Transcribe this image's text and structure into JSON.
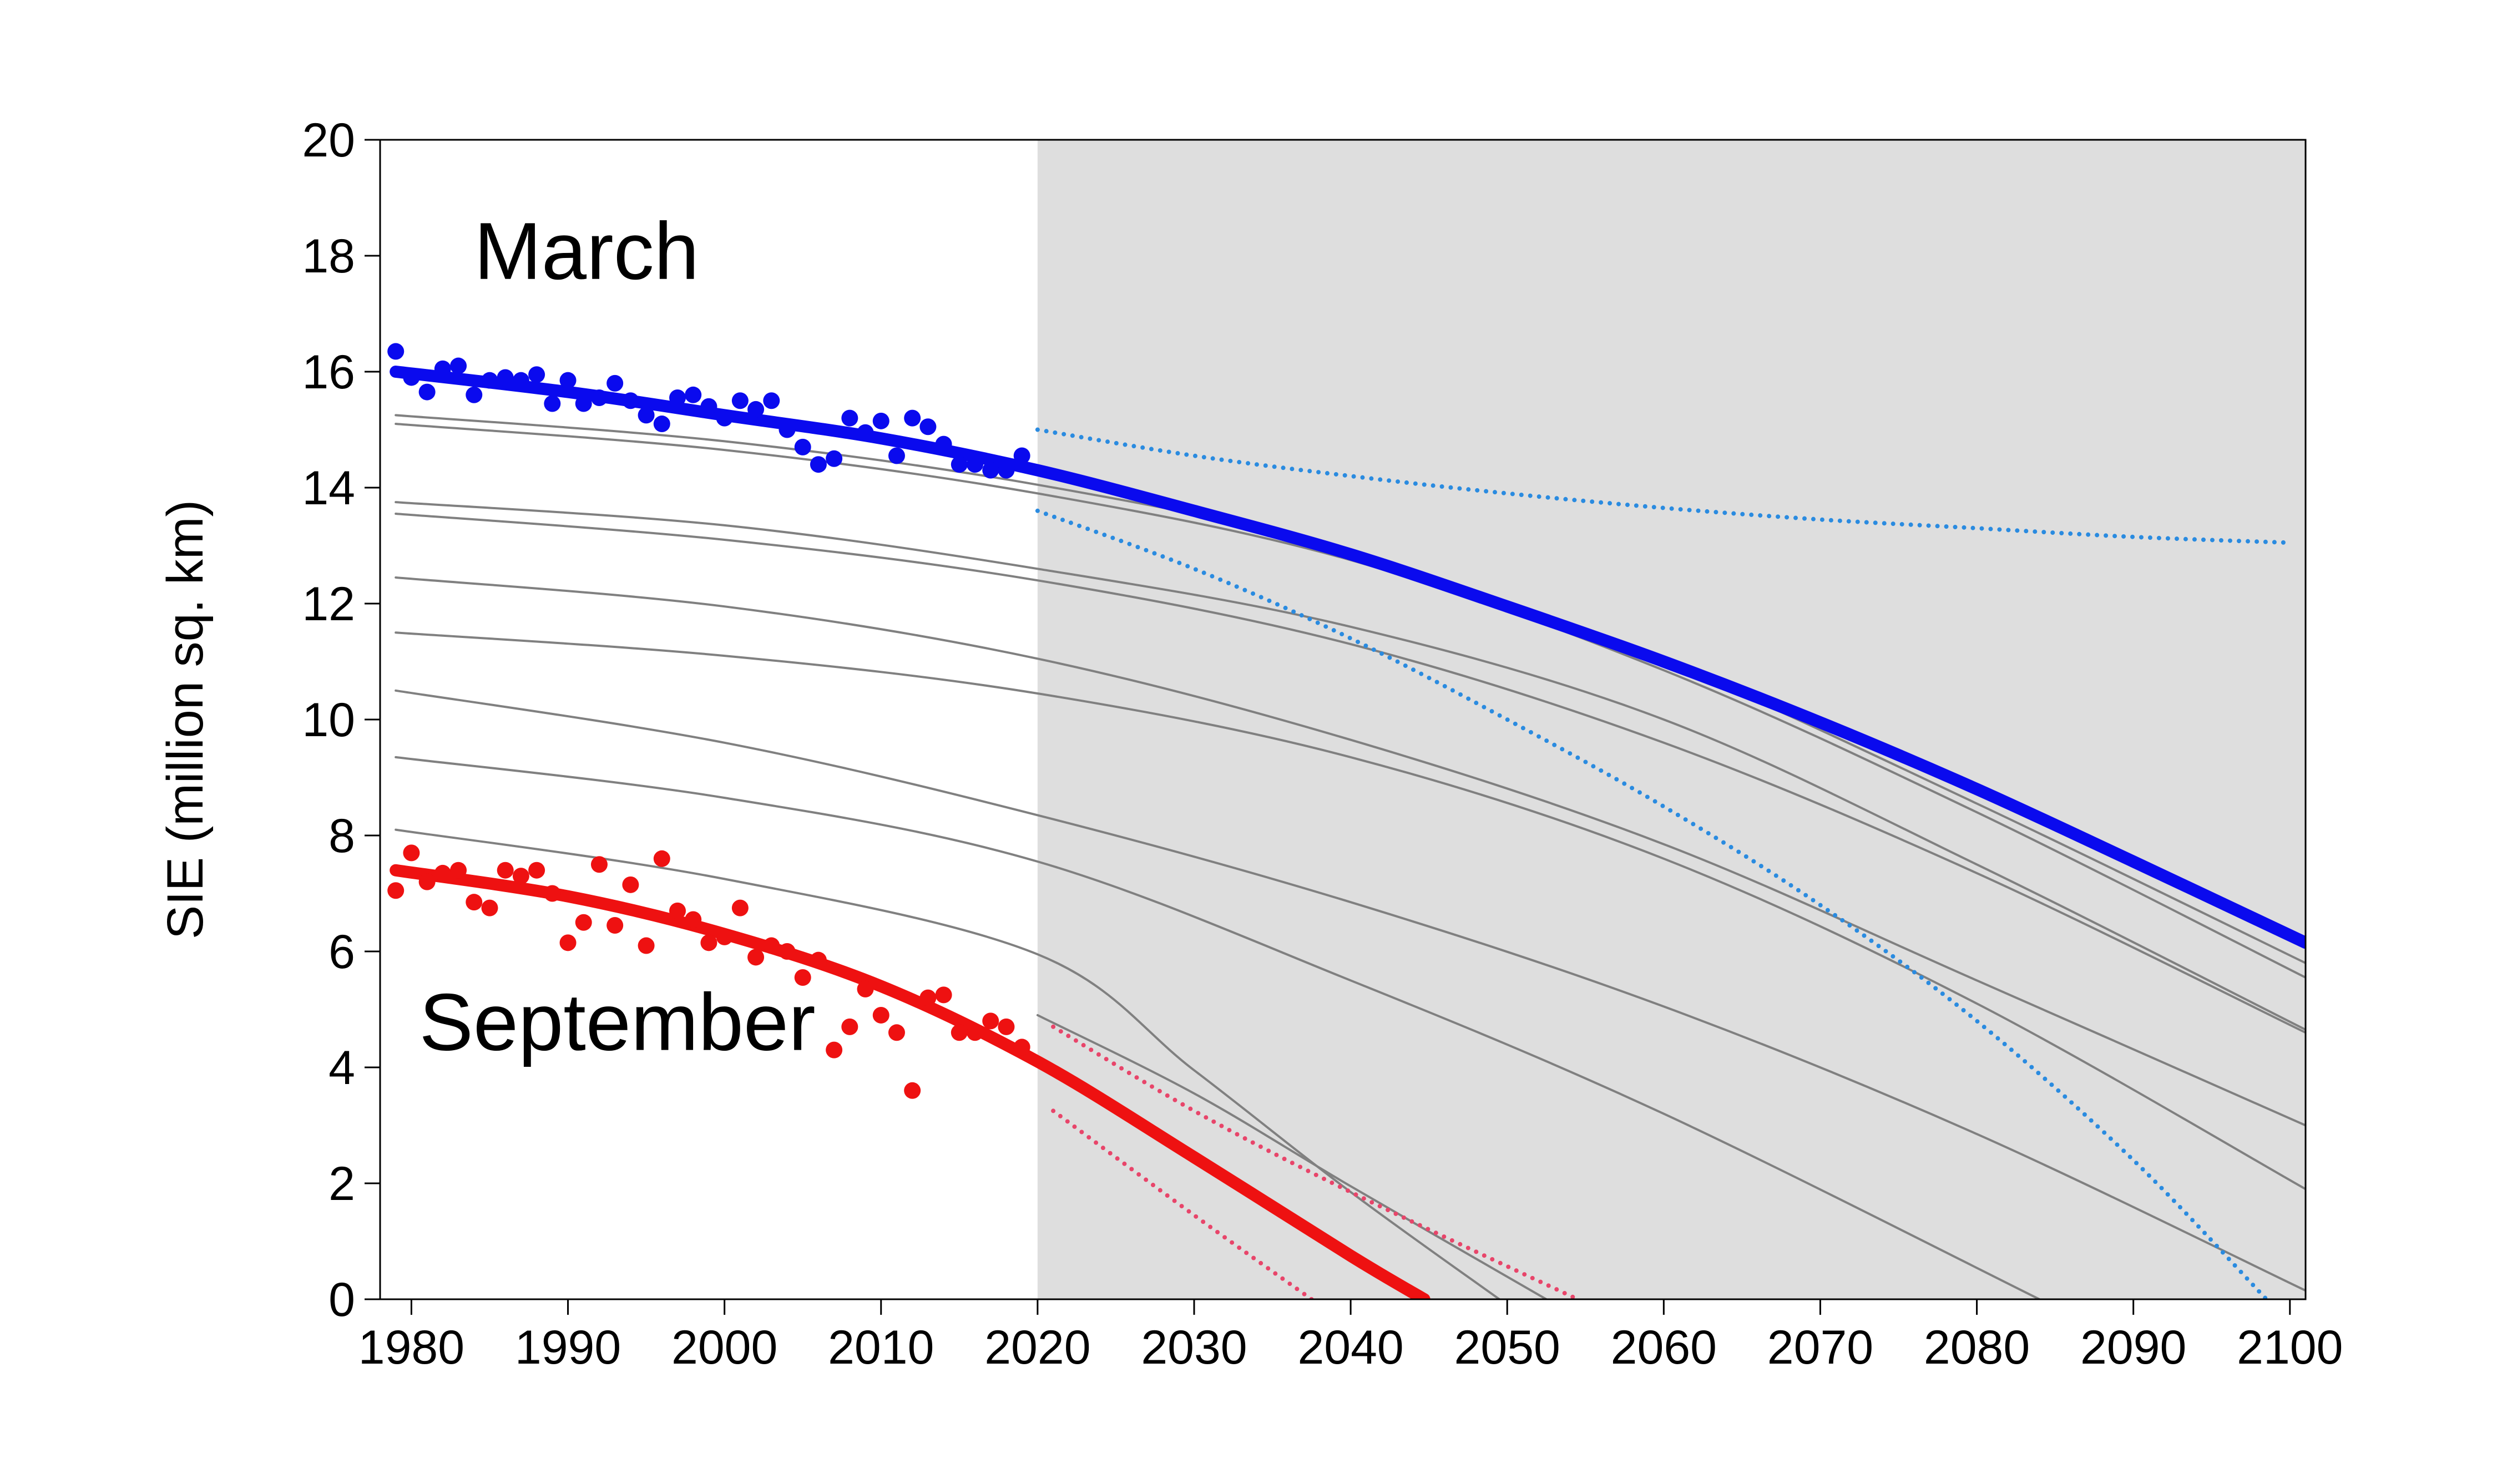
{
  "chart_data": {
    "type": "scatter",
    "title": "",
    "xlabel": "",
    "ylabel": "SIE (million sq. km)",
    "xlim": [
      1978,
      2101
    ],
    "ylim": [
      0,
      20
    ],
    "xticks": [
      1980,
      1990,
      2000,
      2010,
      2020,
      2030,
      2040,
      2050,
      2060,
      2070,
      2080,
      2090,
      2100
    ],
    "yticks": [
      0,
      2,
      4,
      6,
      8,
      10,
      12,
      14,
      16,
      18,
      20
    ],
    "grid": false,
    "shaded_region": {
      "x_start": 2020,
      "x_end": 2101,
      "color": "#dedede"
    },
    "annotations": [
      {
        "text": "March",
        "x": 1984,
        "y": 17.6
      },
      {
        "text": "September",
        "x": 1980.5,
        "y": 4.3
      }
    ],
    "colors": {
      "march": "#0a0aee",
      "september": "#ee1111",
      "march_dotted": "#2a8be0",
      "september_dotted": "#e8456a",
      "gray_lines": "#808080",
      "background_shade": "#dedede"
    },
    "series": [
      {
        "type": "scatter",
        "color": "#0a0aee",
        "x": [
          1979,
          1980,
          1981,
          1982,
          1983,
          1984,
          1985,
          1986,
          1987,
          1988,
          1989,
          1990,
          1991,
          1992,
          1993,
          1994,
          1995,
          1996,
          1997,
          1998,
          1999,
          2000,
          2001,
          2002,
          2003,
          2004,
          2005,
          2006,
          2007,
          2008,
          2009,
          2010,
          2011,
          2012,
          2013,
          2014,
          2015,
          2016,
          2017,
          2018,
          2019
        ],
        "y": [
          16.35,
          15.9,
          15.65,
          16.05,
          16.1,
          15.6,
          15.85,
          15.9,
          15.85,
          15.95,
          15.45,
          15.85,
          15.45,
          15.55,
          15.8,
          15.5,
          15.25,
          15.1,
          15.55,
          15.6,
          15.4,
          15.2,
          15.5,
          15.35,
          15.5,
          15.0,
          14.7,
          14.4,
          14.5,
          15.2,
          14.95,
          15.15,
          14.55,
          15.2,
          15.05,
          14.75,
          14.4,
          14.4,
          14.3,
          14.3,
          14.55
        ]
      },
      {
        "type": "scatter",
        "color": "#ee1111",
        "x": [
          1979,
          1980,
          1981,
          1982,
          1983,
          1984,
          1985,
          1986,
          1987,
          1988,
          1989,
          1990,
          1991,
          1992,
          1993,
          1994,
          1995,
          1996,
          1997,
          1998,
          1999,
          2000,
          2001,
          2002,
          2003,
          2004,
          2005,
          2006,
          2007,
          2008,
          2009,
          2010,
          2011,
          2012,
          2013,
          2014,
          2015,
          2016,
          2017,
          2018,
          2019
        ],
        "y": [
          7.05,
          7.7,
          7.2,
          7.35,
          7.4,
          6.85,
          6.75,
          7.4,
          7.3,
          7.4,
          7.0,
          6.15,
          6.5,
          7.5,
          6.45,
          7.15,
          6.1,
          7.6,
          6.7,
          6.55,
          6.15,
          6.25,
          6.75,
          5.9,
          6.1,
          6.0,
          5.55,
          5.85,
          4.3,
          4.7,
          5.35,
          4.9,
          4.6,
          3.6,
          5.2,
          5.25,
          4.6,
          4.6,
          4.8,
          4.7,
          4.35
        ]
      },
      {
        "type": "line",
        "color": "#0a0aee",
        "x": [
          1979,
          1990,
          2000,
          2010,
          2020,
          2030,
          2040,
          2050,
          2060,
          2070,
          2080,
          2090,
          2101
        ],
        "y": [
          16.0,
          15.65,
          15.25,
          14.85,
          14.3,
          13.6,
          12.85,
          11.95,
          11.0,
          9.95,
          8.8,
          7.55,
          6.15
        ]
      },
      {
        "type": "line",
        "color": "#ee1111",
        "x": [
          1979,
          1990,
          2000,
          2010,
          2020,
          2030,
          2040,
          2044.7
        ],
        "y": [
          7.4,
          6.95,
          6.3,
          5.4,
          4.1,
          2.45,
          0.75,
          0.0
        ]
      },
      {
        "type": "line",
        "color": "#2a8be0",
        "x": [
          2020,
          2030,
          2040,
          2050,
          2060,
          2070,
          2080,
          2090,
          2100
        ],
        "y": [
          15.0,
          14.55,
          14.2,
          13.9,
          13.65,
          13.45,
          13.3,
          13.15,
          13.05
        ]
      },
      {
        "type": "line",
        "color": "#2a8be0",
        "x": [
          2020,
          2030,
          2040,
          2050,
          2060,
          2070,
          2080,
          2090,
          2098.5
        ],
        "y": [
          13.6,
          12.6,
          11.4,
          10.0,
          8.5,
          6.8,
          4.8,
          2.4,
          0.0
        ]
      },
      {
        "type": "line",
        "color": "#e8456a",
        "x": [
          2021,
          2030,
          2040,
          2054.5
        ],
        "y": [
          4.7,
          3.25,
          1.85,
          0.0
        ]
      },
      {
        "type": "line",
        "color": "#e8456a",
        "x": [
          2021,
          2030,
          2037.5
        ],
        "y": [
          3.25,
          1.45,
          0.0
        ]
      },
      {
        "type": "line",
        "color": "#808080",
        "x": [
          1979,
          2000,
          2020,
          2040,
          2060,
          2080,
          2101
        ],
        "y": [
          15.25,
          14.8,
          14.05,
          12.9,
          11.0,
          8.55,
          5.8
        ]
      },
      {
        "type": "line",
        "color": "#808080",
        "x": [
          1979,
          2000,
          2020,
          2040,
          2060,
          2080,
          2101
        ],
        "y": [
          15.1,
          14.65,
          13.9,
          12.75,
          10.85,
          8.4,
          5.55
        ]
      },
      {
        "type": "line",
        "color": "#808080",
        "x": [
          1979,
          2000,
          2020,
          2040,
          2060,
          2080,
          2101
        ],
        "y": [
          13.75,
          13.35,
          12.6,
          11.6,
          10.0,
          7.5,
          4.65
        ]
      },
      {
        "type": "line",
        "color": "#808080",
        "x": [
          1979,
          2000,
          2020,
          2040,
          2060,
          2080,
          2101
        ],
        "y": [
          13.55,
          13.1,
          12.4,
          11.3,
          9.6,
          7.35,
          4.6
        ]
      },
      {
        "type": "line",
        "color": "#808080",
        "x": [
          1979,
          2000,
          2020,
          2040,
          2060,
          2080,
          2101
        ],
        "y": [
          12.45,
          11.95,
          11.05,
          9.65,
          7.85,
          5.5,
          3.0
        ]
      },
      {
        "type": "line",
        "color": "#808080",
        "x": [
          1979,
          2000,
          2020,
          2040,
          2060,
          2080,
          2101
        ],
        "y": [
          11.5,
          11.1,
          10.45,
          9.35,
          7.6,
          5.1,
          1.9
        ]
      },
      {
        "type": "line",
        "color": "#808080",
        "x": [
          1979,
          2000,
          2020,
          2040,
          2060,
          2080,
          2101
        ],
        "y": [
          10.5,
          9.6,
          8.35,
          6.85,
          5.05,
          2.85,
          0.15
        ]
      },
      {
        "type": "line",
        "color": "#808080",
        "x": [
          1979,
          2000,
          2020,
          2040,
          2060,
          2084
        ],
        "y": [
          9.35,
          8.65,
          7.55,
          5.5,
          3.2,
          0.0
        ]
      },
      {
        "type": "line",
        "color": "#808080",
        "x": [
          1979,
          2000,
          2020,
          2030,
          2040,
          2049.5
        ],
        "y": [
          8.1,
          7.25,
          5.95,
          3.95,
          1.85,
          0.0
        ]
      },
      {
        "type": "line",
        "color": "#808080",
        "x": [
          2020,
          2030,
          2040,
          2052.5
        ],
        "y": [
          4.9,
          3.55,
          1.95,
          0.0
        ]
      }
    ]
  }
}
